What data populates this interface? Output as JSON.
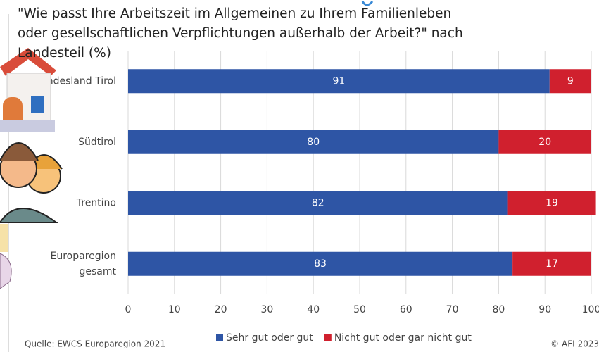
{
  "chart_data": {
    "type": "stacked_bar_horizontal",
    "title": "\"Wie passt Ihre Arbeitszeit im Allgemeinen zu Ihrem Familienleben oder gesellschaftlichen Verpflichtungen außerhalb der Arbeit?\" nach Landesteil (%)",
    "categories": [
      "Bundesland Tirol",
      "Südtirol",
      "Trentino",
      "Europaregion gesamt"
    ],
    "series": [
      {
        "name": "Sehr gut oder gut",
        "color": "#2e55a5",
        "values": [
          91,
          80,
          82,
          83
        ]
      },
      {
        "name": "Nicht gut oder gar nicht gut",
        "color": "#d0202e",
        "values": [
          9,
          20,
          19,
          17
        ]
      }
    ],
    "xlim": [
      0,
      100
    ],
    "xticks": [
      0,
      10,
      20,
      30,
      40,
      50,
      60,
      70,
      80,
      90,
      100
    ],
    "grid": true,
    "source": "Quelle: EWCS Europaregion 2021",
    "credit": "© AFI 2023"
  }
}
